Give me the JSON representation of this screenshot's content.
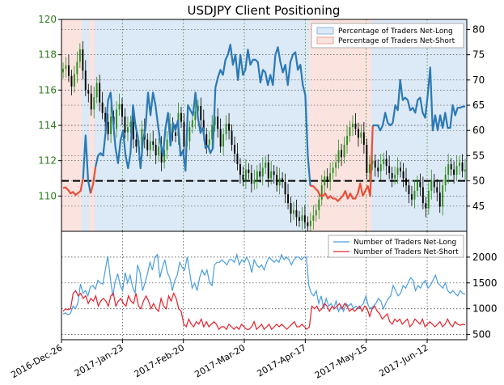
{
  "chart_data": [
    {
      "type": "line",
      "title": "USDJPY Client Positioning",
      "left_axis": {
        "ylim": [
          108,
          120
        ],
        "ticks": [
          110,
          112,
          114,
          116,
          118,
          120
        ],
        "color": "#2e7d1e"
      },
      "right_axis": {
        "ylim": [
          40,
          82
        ],
        "ticks": [
          45,
          50,
          55,
          60,
          65,
          70,
          75,
          80
        ]
      },
      "x_ticks": [
        "2016-Dec-26",
        "2017-Jan-23",
        "2017-Feb-20",
        "2017-Mar-20",
        "2017-Apr-17",
        "2017-May-15",
        "2017-Jun-12"
      ],
      "legend": {
        "placement": "top-right",
        "entries": [
          "Percentage of Traders Net-Long",
          "Percentage of Traders Net-Short"
        ]
      },
      "reference_line": 50,
      "colors": {
        "net_long": "#2b79b5",
        "net_short": "#e8503a",
        "bull_candle": "#2e8b1e",
        "bear_candle": "#000000",
        "long_fill": "#dce9f6",
        "short_fill": "#fbe3df"
      },
      "series": [
        {
          "name": "Percentage of Traders Net-Long",
          "y": [
            48.6,
            48.7,
            48.2,
            47.5,
            47.8,
            47.2,
            47.6,
            48.0,
            50.5,
            59.0,
            50.2,
            47.5,
            49.3,
            52.8,
            55.0,
            55.5,
            55.0,
            59.5,
            66.0,
            67.5,
            62.0,
            56.5,
            53.5,
            58.0,
            60.0,
            55.0,
            52.5,
            55.5,
            65.0,
            61.0,
            58.5,
            52.5,
            58.0,
            60.5,
            67.5,
            63.0,
            67.5,
            65.0,
            61.0,
            57.5,
            55.0,
            60.5,
            63.5,
            57.0,
            61.5,
            60.0,
            62.0,
            55.0,
            56.0,
            52.0,
            65.0,
            64.0,
            63.0,
            67.5,
            62.5,
            59.5,
            60.5,
            56.5,
            57.0,
            55.5,
            56.5,
            68.5,
            70.5,
            72.0,
            71.0,
            74.0,
            75.0,
            77.0,
            73.0,
            75.0,
            70.0,
            75.0,
            71.0,
            72.0,
            76.0,
            73.0,
            74.0,
            74.0,
            73.5,
            69.5,
            72.0,
            71.5,
            69.0,
            71.0,
            69.0,
            75.0,
            76.5,
            73.5,
            71.5,
            73.0,
            69.0,
            73.5,
            75.0,
            75.5,
            72.0,
            73.0,
            69.0,
            67.0,
            55.0,
            49.0,
            49.0,
            48.5,
            48.0,
            47.0,
            47.0,
            47.5,
            46.5,
            47.0,
            46.5,
            46.5,
            46.0,
            46.5,
            47.0,
            48.0,
            46.5,
            47.5,
            46.5,
            46.5,
            47.5,
            49.5,
            47.0,
            48.0,
            49.0,
            47.0,
            61.0,
            61.0,
            61.0,
            60.0,
            61.0,
            63.5,
            61.5,
            61.0,
            61.5,
            65.0,
            64.0,
            70.0,
            66.0,
            66.5,
            66.0,
            64.0,
            64.5,
            63.5,
            66.0,
            66.5,
            63.5,
            62.5,
            67.0,
            72.5,
            60.0,
            63.0,
            60.0,
            63.0,
            60.5,
            63.5,
            60.5,
            60.5,
            65.0,
            63.0,
            64.5,
            64.5,
            64.7,
            64.8
          ]
        },
        {
          "name": "Number of Traders Net-Long",
          "y": [
            900,
            920,
            880,
            910,
            1050,
            1000,
            1120,
            1480,
            1300,
            1350,
            1250,
            1430,
            1450,
            1380,
            1550,
            1500,
            1480,
            1750,
            2020,
            1600,
            1250,
            1520,
            1680,
            1450,
            1350,
            1700,
            1500,
            1650,
            1420,
            1300,
            1850,
            1700,
            1350,
            1500,
            1680,
            1900,
            1750,
            2000,
            2050,
            1600,
            1800,
            1950,
            1700,
            1600,
            1350,
            1550,
            1650,
            1900,
            1800,
            1750,
            2000,
            1700,
            1400,
            1500,
            1350,
            1600,
            1750,
            1650,
            1750,
            1500,
            1450,
            1850,
            1900,
            1900,
            1950,
            1900,
            1850,
            1950,
            1950,
            1900,
            2050,
            1850,
            1950,
            1900,
            2000,
            1900,
            1700,
            1950,
            1850,
            1800,
            1850,
            1750,
            1900,
            2000,
            1950,
            1900,
            1950,
            1900,
            2050,
            1950,
            2000,
            1950,
            1850,
            1950,
            2000,
            2000,
            1950,
            2000,
            2000,
            1450,
            1300,
            1250,
            1350,
            1100,
            1250,
            1000,
            1200,
            1050,
            1100,
            1000,
            1150,
            950,
            1050,
            950,
            1100,
            1050,
            1100,
            1000,
            1050,
            1000,
            1050,
            1100,
            1250,
            1050,
            1000,
            1050,
            1100,
            1200,
            1150,
            1000,
            1100,
            1200,
            1250,
            1450,
            1350,
            1250,
            1300,
            1450,
            1400,
            1500,
            1600,
            1550,
            1350,
            1450,
            1400,
            1500,
            1550,
            1400,
            1450,
            1550,
            1650,
            1500,
            1450,
            1400,
            1500,
            1350,
            1300,
            1350,
            1300,
            1250,
            1350,
            1300,
            1280
          ]
        },
        {
          "name": "Number of Traders Net-Short",
          "y": [
            950,
            1000,
            980,
            1000,
            1300,
            1350,
            1250,
            1300,
            1200,
            1250,
            1100,
            1200,
            1150,
            1250,
            1050,
            1150,
            1200,
            1150,
            1050,
            1250,
            1300,
            1050,
            1150,
            1200,
            1100,
            1050,
            1250,
            1150,
            1100,
            1300,
            1050,
            1000,
            1150,
            1250,
            1150,
            1000,
            1100,
            1000,
            950,
            1200,
            1050,
            1000,
            1250,
            1150,
            1300,
            1200,
            1000,
            950,
            700,
            650,
            800,
            700,
            650,
            750,
            700,
            800,
            650,
            750,
            650,
            700,
            750,
            700,
            600,
            650,
            650,
            600,
            700,
            650,
            600,
            650,
            600,
            700,
            650,
            600,
            600,
            650,
            750,
            600,
            650,
            700,
            600,
            650,
            700,
            600,
            650,
            700,
            650,
            700,
            650,
            600,
            650,
            700,
            750,
            650,
            650,
            700,
            650,
            600,
            650,
            1050,
            1000,
            1050,
            950,
            1000,
            1100,
            1050,
            950,
            1050,
            1000,
            1050,
            1100,
            1000,
            1100,
            1050,
            950,
            1000,
            950,
            1000,
            1050,
            950,
            1050,
            1000,
            850,
            1000,
            1050,
            950,
            900,
            800,
            850,
            900,
            750,
            700,
            800,
            750,
            800,
            700,
            750,
            800,
            650,
            700,
            800,
            750,
            700,
            800,
            650,
            700,
            750,
            700,
            650,
            700,
            750,
            650,
            700,
            800,
            700,
            650,
            750,
            700,
            680,
            700,
            690
          ]
        }
      ]
    },
    {
      "type": "line",
      "legend": {
        "placement": "top-right",
        "entries": [
          "Number of Traders Net-Long",
          "Number of Traders Net-Short"
        ]
      },
      "ylim": [
        400,
        2500
      ],
      "right_ticks": [
        500,
        1000,
        1500,
        2000
      ]
    }
  ],
  "candles_close": [
    117.2,
    117.4,
    116.8,
    116.2,
    116.9,
    117.6,
    118.3,
    117.1,
    116.0,
    115.8,
    114.9,
    115.6,
    116.4,
    115.3,
    114.7,
    114.2,
    113.5,
    114.5,
    113.8,
    114.9,
    115.2,
    114.5,
    113.6,
    113.9,
    114.2,
    113.2,
    112.8,
    112.5,
    113.8,
    113.2,
    112.6,
    113.1,
    112.9,
    112.3,
    112.8,
    111.9,
    112.6,
    113.2,
    114.1,
    113.6,
    113.4,
    114.7,
    114.2,
    112.8,
    113.1,
    113.9,
    114.3,
    114.8,
    115.1,
    114.3,
    113.5,
    112.9,
    113.2,
    114.0,
    114.5,
    113.8,
    112.8,
    113.5,
    114.1,
    113.7,
    112.9,
    112.4,
    111.8,
    111.2,
    110.9,
    111.5,
    111.3,
    110.7,
    110.9,
    111.4,
    111.1,
    111.6,
    111.9,
    111.0,
    111.4,
    111.2,
    110.6,
    111.0,
    110.8,
    110.1,
    109.6,
    109.0,
    109.2,
    108.8,
    108.6,
    108.9,
    108.5,
    108.3,
    108.6,
    108.9,
    109.2,
    109.8,
    110.6,
    111.1,
    110.8,
    111.3,
    111.6,
    111.9,
    112.6,
    112.2,
    112.9,
    113.4,
    113.9,
    114.1,
    113.8,
    113.3,
    113.6,
    112.9,
    111.3,
    111.8,
    112.0,
    111.6,
    111.4,
    111.8,
    112.1,
    111.7,
    111.3,
    111.0,
    111.2,
    111.6,
    111.4,
    111.0,
    110.6,
    110.1,
    109.8,
    110.3,
    110.8,
    110.5,
    109.6,
    109.3,
    110.3,
    110.9,
    110.5,
    110.2,
    109.4,
    110.6,
    111.2,
    111.8,
    111.5,
    111.2,
    111.7,
    111.9,
    111.4,
    111.5
  ]
}
